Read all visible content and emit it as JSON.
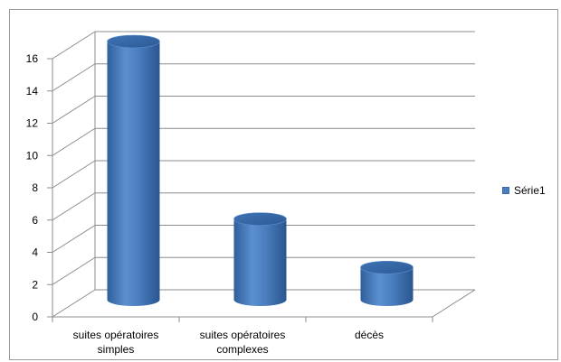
{
  "chart_data": {
    "type": "bar",
    "style": "3d-cylinder",
    "categories": [
      "suites opératoires simples",
      "suites opératoires complexes",
      "décès"
    ],
    "category_lines": [
      [
        "suites opératoires",
        "simples"
      ],
      [
        "suites opératoires",
        "complexes"
      ],
      [
        "décès"
      ]
    ],
    "series": [
      {
        "name": "Série1",
        "values": [
          16,
          5,
          2
        ],
        "color": "#4a7ebf"
      }
    ],
    "ylim": [
      0,
      16
    ],
    "yticks": [
      0,
      2,
      4,
      6,
      8,
      10,
      12,
      14,
      16
    ],
    "grid": true,
    "legend": "right"
  }
}
